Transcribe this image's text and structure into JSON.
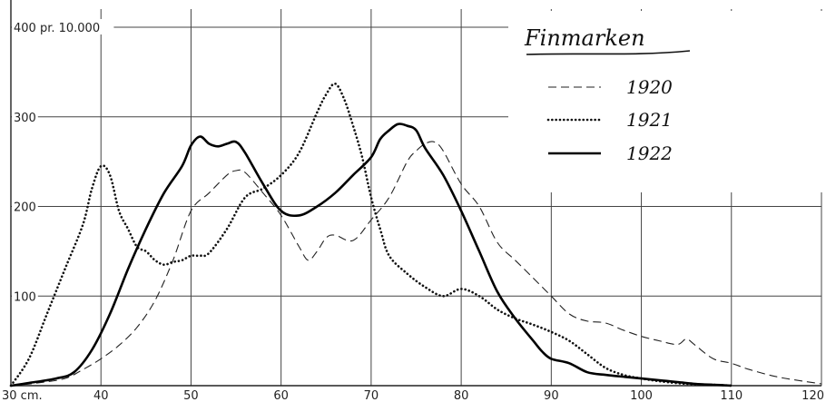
{
  "chart_data": {
    "type": "line",
    "title": "Finmarken",
    "ylabel_unit": "pr. 10.000",
    "xlabel_unit": "cm.",
    "xlim": [
      30,
      120
    ],
    "ylim": [
      0,
      400
    ],
    "x_ticks": [
      30,
      40,
      50,
      60,
      70,
      80,
      90,
      100,
      110,
      120
    ],
    "x_tick_labels": [
      "30 cm.",
      "40",
      "50",
      "60",
      "70",
      "80",
      "90",
      "100",
      "110",
      "120"
    ],
    "y_ticks": [
      100,
      200,
      300,
      400
    ],
    "y_tick_labels": [
      "100",
      "200",
      "300",
      "400 pr. 10.000"
    ],
    "grid": true,
    "legend_position": "top-right",
    "series": [
      {
        "name": "1920",
        "style": "dashed",
        "x": [
          30,
          33,
          36,
          38,
          40,
          42,
          44,
          46,
          48,
          50,
          52,
          54,
          55,
          56,
          58,
          60,
          62,
          63,
          64,
          65,
          66,
          68,
          70,
          72,
          74,
          75,
          76,
          77,
          78,
          80,
          82,
          84,
          86,
          88,
          90,
          92,
          94,
          96,
          98,
          100,
          102,
          104,
          105,
          106,
          108,
          110,
          112,
          115,
          118,
          120
        ],
        "y": [
          0,
          3,
          8,
          18,
          30,
          45,
          65,
          95,
          140,
          195,
          215,
          235,
          240,
          238,
          215,
          190,
          155,
          140,
          150,
          165,
          168,
          162,
          185,
          210,
          250,
          262,
          270,
          272,
          262,
          225,
          200,
          160,
          140,
          120,
          100,
          80,
          72,
          70,
          62,
          55,
          50,
          46,
          52,
          45,
          30,
          25,
          18,
          10,
          5,
          2
        ]
      },
      {
        "name": "1921",
        "style": "dotted",
        "x": [
          30,
          32,
          34,
          36,
          38,
          39,
          40,
          41,
          42,
          43,
          44,
          45,
          46,
          47,
          48,
          49,
          50,
          51,
          52,
          54,
          56,
          58,
          60,
          62,
          64,
          65,
          66,
          67,
          68,
          69,
          70,
          71,
          72,
          74,
          76,
          78,
          80,
          82,
          84,
          86,
          88,
          90,
          92,
          94,
          96,
          98,
          100,
          102,
          105,
          108,
          110
        ],
        "y": [
          0,
          30,
          80,
          130,
          180,
          220,
          245,
          235,
          195,
          175,
          155,
          150,
          140,
          135,
          138,
          140,
          145,
          145,
          148,
          175,
          210,
          220,
          235,
          260,
          305,
          325,
          337,
          320,
          290,
          255,
          210,
          175,
          145,
          125,
          110,
          100,
          108,
          100,
          85,
          75,
          68,
          60,
          50,
          35,
          20,
          12,
          8,
          5,
          2,
          1,
          0
        ]
      },
      {
        "name": "1922",
        "style": "solid",
        "x": [
          30,
          32,
          35,
          37,
          39,
          41,
          43,
          45,
          47,
          49,
          50,
          51,
          52,
          53,
          54,
          55,
          56,
          58,
          60,
          62,
          64,
          66,
          68,
          70,
          71,
          72,
          73,
          74,
          75,
          76,
          78,
          80,
          82,
          84,
          86,
          88,
          89,
          90,
          92,
          94,
          96,
          98,
          100,
          102,
          104,
          106,
          108,
          110
        ],
        "y": [
          0,
          3,
          8,
          15,
          40,
          80,
          130,
          175,
          215,
          245,
          268,
          278,
          270,
          267,
          270,
          272,
          260,
          225,
          195,
          190,
          200,
          215,
          235,
          255,
          275,
          285,
          292,
          290,
          285,
          265,
          235,
          195,
          150,
          105,
          75,
          50,
          38,
          30,
          25,
          15,
          12,
          10,
          8,
          6,
          4,
          2,
          1,
          0
        ]
      }
    ]
  }
}
